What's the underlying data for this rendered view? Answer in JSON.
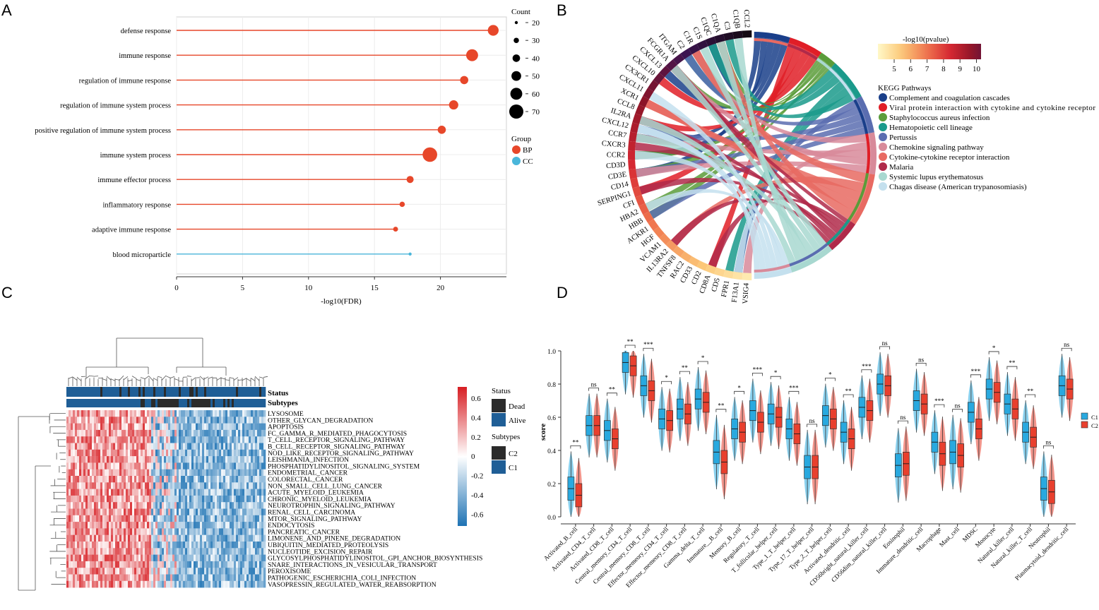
{
  "panels": {
    "a": "A",
    "b": "B",
    "c": "C",
    "d": "D"
  },
  "colors": {
    "bp": "#e7472a",
    "cc": "#4ab6da",
    "c1": "#29a9df",
    "c2": "#e8402e",
    "dead": "#2b2b2b",
    "alive": "#1f5e96",
    "grid": "#ececec"
  },
  "chart_data": [
    {
      "id": "A",
      "type": "scatter",
      "title": "",
      "xlabel": "-log10(FDR)",
      "xlim": [
        0,
        25
      ],
      "xticks": [
        0,
        5,
        10,
        15,
        20
      ],
      "categories": [
        "defense response",
        "immune response",
        "regulation of immune response",
        "regulation of immune system process",
        "positive regulation of immune system process",
        "immune system process",
        "immune effector process",
        "inflammatory response",
        "adaptive immune response",
        "blood microparticle"
      ],
      "values": [
        24.0,
        22.4,
        21.8,
        21.0,
        20.1,
        19.2,
        17.7,
        17.1,
        16.6,
        17.7
      ],
      "counts": [
        55,
        60,
        43,
        48,
        43,
        72,
        38,
        30,
        28,
        20
      ],
      "groups": [
        "BP",
        "BP",
        "BP",
        "BP",
        "BP",
        "BP",
        "BP",
        "BP",
        "BP",
        "CC"
      ],
      "size_legend": {
        "title": "Count",
        "ticks": [
          20,
          30,
          40,
          50,
          60,
          70
        ]
      },
      "group_legend": {
        "title": "Group",
        "items": [
          "BP",
          "CC"
        ]
      }
    },
    {
      "id": "B",
      "type": "chord",
      "genes": [
        "CCL2",
        "C1QB",
        "C3",
        "C1QA",
        "C1QC",
        "C1S",
        "C1R",
        "C2",
        "ITGAM",
        "FCGR1A",
        "CXCL13",
        "CXCL10",
        "CX3CR1",
        "CXCL11",
        "XCR1",
        "CCL8",
        "IL2RA",
        "CXCL12",
        "CCR7",
        "CXCR3",
        "CCR2",
        "CD3D",
        "CD3E",
        "CD14",
        "SERPING1",
        "CFI",
        "HBA2",
        "HBB",
        "ACKR1",
        "HGF",
        "VCAM1",
        "IL13RA2",
        "TNFSF8",
        "RAC2",
        "CD33",
        "CD2",
        "CD8A",
        "CD5",
        "FPR1",
        "F13A1",
        "VSIG4"
      ],
      "colorbar": {
        "title": "-log10(pvalue)",
        "ticks": [
          "5",
          "6",
          "7",
          "8",
          "9",
          "10"
        ]
      },
      "legend_title": "KEGG Pathways",
      "pathways": [
        {
          "name": "Complement and coagulation cascades",
          "color": "#1a3f8a"
        },
        {
          "name": "Viral protein interaction with cytokine and cytokine receptor",
          "color": "#e01e27"
        },
        {
          "name": "Staphylococcus aureus infection",
          "color": "#5b9c3a"
        },
        {
          "name": "Hematopoietic cell lineage",
          "color": "#1a9a8b"
        },
        {
          "name": "Pertussis",
          "color": "#5a6db0"
        },
        {
          "name": "Chemokine signaling pathway",
          "color": "#d88a9a"
        },
        {
          "name": "Cytokine-cytokine receptor interaction",
          "color": "#e86a62"
        },
        {
          "name": "Malaria",
          "color": "#b02a4a"
        },
        {
          "name": "Systemic lupus erythematosus",
          "color": "#a8d8d0"
        },
        {
          "name": "Chagas disease (American trypanosomiasis)",
          "color": "#c4e0ee"
        }
      ]
    },
    {
      "id": "C",
      "type": "heatmap",
      "rows": [
        "LYSOSOME",
        "OTHER_GLYCAN_DEGRADATION",
        "APOPTOSIS",
        "FC_GAMMA_R_MEDIATED_PHAGOCYTOSIS",
        "T_CELL_RECEPTOR_SIGNALING_PATHWAY",
        "B_CELL_RECEPTOR_SIGNALING_PATHWAY",
        "NOD_LIKE_RECEPTOR_SIGNALING_PATHWAY",
        "LEISHMANIA_INFECTION",
        "PHOSPHATIDYLINOSITOL_SIGNALING_SYSTEM",
        "ENDOMETRIAL_CANCER",
        "COLORECTAL_CANCER",
        "NON_SMALL_CELL_LUNG_CANCER",
        "ACUTE_MYELOID_LEUKEMIA",
        "CHRONIC_MYELOID_LEUKEMIA",
        "NEUROTROPHIN_SIGNALING_PATHWAY",
        "RENAL_CELL_CARCINOMA",
        "MTOR_SIGNALING_PATHWAY",
        "ENDOCYTOSIS",
        "PANCREATIC_CANCER",
        "LIMONENE_AND_PINENE_DEGRADATION",
        "UBIQUITIN_MEDIATED_PROTEOLYSIS",
        "NUCLEOTIDE_EXCISION_REPAIR",
        "GLYCOSYLPHOSPHATIDYLINOSITOL_GPI_ANCHOR_BIOSYNTHESIS",
        "SNARE_INTERACTIONS_IN_VESICULAR_TRANSPORT",
        "PEROXISOME",
        "PATHOGENIC_ESCHERICHIA_COLI_INFECTION",
        "VASOPRESSIN_REGULATED_WATER_REABSORPTION"
      ],
      "annotations": [
        "Status",
        "Subtypes"
      ],
      "colorbar_ticks": [
        "0.6",
        "0.4",
        "0.2",
        "0",
        "-0.2",
        "-0.4",
        "-0.6"
      ],
      "legend": {
        "status_title": "Status",
        "status_items": [
          "Dead",
          "Alive"
        ],
        "subtype_title": "Subtypes",
        "subtype_items": [
          "C2",
          "C1"
        ]
      }
    },
    {
      "id": "D",
      "type": "box",
      "ylabel": "score",
      "ylim": [
        0,
        1
      ],
      "yticks": [
        "0.0",
        "0.2",
        "0.4",
        "0.6",
        "0.8",
        "1.0"
      ],
      "categories": [
        "Activated_B_cell",
        "Activated_CD4_T_cell",
        "Activated_CD8_T_cell",
        "Central_memory_CD4_T_cell",
        "Central_memory_CD8_T_cell",
        "Effector_memeory_CD4_T_cell",
        "Effector_memeory_CD8_T_cell",
        "Gamma_delta_T_cell",
        "Immature__B_cell",
        "Memory_B_cell",
        "Regulatory_T_cell",
        "T_follicular_helper_cell",
        "Type_1_T_helper_cell",
        "Type_17_T_helper_cell",
        "Type_2_T_helper_cell",
        "Activated_dendritic_cell",
        "CD56bright_natural_killer_cell",
        "CD56dim_natural_killer_cell",
        "Eosinophil",
        "Immature_dendritic_cell",
        "Macrophage",
        "Mast_cell",
        "MDSC",
        "Monocyte",
        "Natural_killer_cell",
        "Natural_killer_T_cell",
        "Neutrophil",
        "Plasmacytoid_dendritic_cell"
      ],
      "series": [
        {
          "name": "C1",
          "medians": [
            0.17,
            0.55,
            0.52,
            0.93,
            0.79,
            0.59,
            0.65,
            0.71,
            0.39,
            0.53,
            0.64,
            0.62,
            0.53,
            0.3,
            0.61,
            0.51,
            0.66,
            0.8,
            0.31,
            0.7,
            0.45,
            0.39,
            0.63,
            0.77,
            0.68,
            0.51,
            0.17,
            0.79
          ]
        },
        {
          "name": "C2",
          "medians": [
            0.13,
            0.55,
            0.47,
            0.91,
            0.76,
            0.58,
            0.62,
            0.69,
            0.33,
            0.51,
            0.57,
            0.6,
            0.5,
            0.3,
            0.59,
            0.47,
            0.64,
            0.79,
            0.32,
            0.68,
            0.38,
            0.37,
            0.53,
            0.75,
            0.65,
            0.48,
            0.15,
            0.77
          ]
        }
      ],
      "significance": [
        "**",
        "ns",
        "**",
        "**",
        "***",
        "*",
        "**",
        "*",
        "**",
        "*",
        "***",
        "*",
        "***",
        "ns",
        "*",
        "**",
        "***",
        "ns",
        "ns",
        "ns",
        "***",
        "ns",
        "***",
        "*",
        "**",
        "**",
        "ns",
        "ns"
      ],
      "legend_items": [
        "C1",
        "C2"
      ]
    }
  ]
}
